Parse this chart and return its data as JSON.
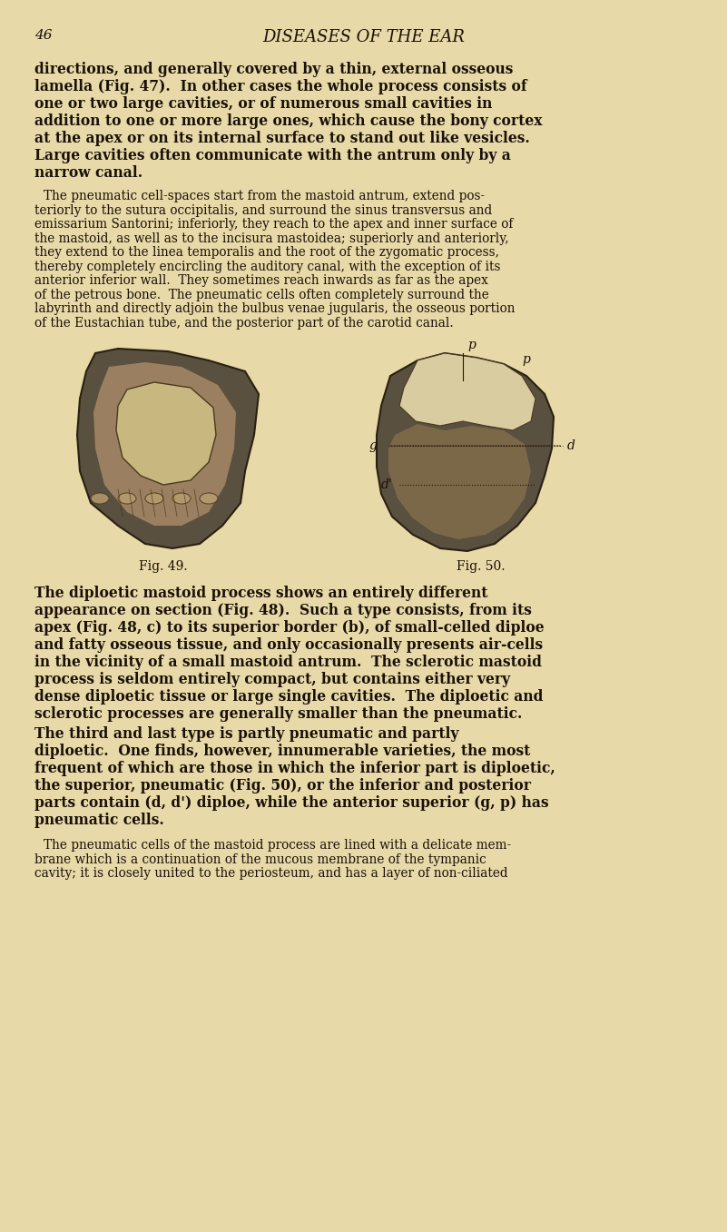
{
  "background_color": "#e8d9a8",
  "page_number": "46",
  "header_title": "DISEASES OF THE EAR",
  "text_color": "#1a1008",
  "font_size_body": 10.5,
  "font_size_header": 13,
  "fig49_caption": "Fig. 49.",
  "fig50_caption": "Fig. 50.",
  "bold_paragraph1": "directions, and generally covered by a thin, external osseous\nlamella (Fig. 47).  In other cases the whole process consists of\none or two large cavities, or of numerous small cavities in\naddition to one or more large ones, which cause the bony cortex\nat the apex or on its internal surface to stand out like vesicles.\nLarge cavities often communicate with the antrum only by a\nnarrow canal.",
  "paragraph2": "The pneumatic cell-spaces start from the mastoid antrum, extend pos-\nteriorly to the sutura occipitalis, and surround the sinus transversus and\nemissarium Santorini; inferiorly, they reach to the apex and inner surface of\nthe mastoid, as well as to the incisura mastoidea; superiorly and anteriorly,\nthey extend to the linea temporalis and the root of the zygomatic process,\nthereby completely encircling the auditory canal, with the exception of its\nanterior inferior wall.  They sometimes reach inwards as far as the apex\nof the petrous bone.  The pneumatic cells often completely surround the\nlabyrinth and directly adjoin the bulbus venae jugularis, the osseous portion\nof the Eustachian tube, and the posterior part of the carotid canal.",
  "bold_paragraph3": "The diploetic mastoid process shows an entirely different\nappearance on section (Fig. 48).  Such a type consists, from its\napex (Fig. 48, c) to its superior border (b), of small-celled diploe\nand fatty osseous tissue, and only occasionally presents air-cells\nin the vicinity of a small mastoid antrum.  The sclerotic mastoid\nprocess is seldom entirely compact, but contains either very\ndense diploetic tissue or large single cavities.  The diploetic and\nsclerotic processes are generally smaller than the pneumatic.",
  "bold_paragraph4": "The third and last type is partly pneumatic and partly\ndiploetic.  One finds, however, innumerable varieties, the most\nfrequent of which are those in which the inferior part is diploetic,\nthe superior, pneumatic (Fig. 50), or the inferior and posterior\nparts contain (d, d') diploe, while the anterior superior (g, p) has\npneumatic cells.",
  "paragraph5": "The pneumatic cells of the mastoid process are lined with a delicate mem-\nbrane which is a continuation of the mucous membrane of the tympanic\ncavity; it is closely united to the periosteum, and has a layer of non-ciliated"
}
